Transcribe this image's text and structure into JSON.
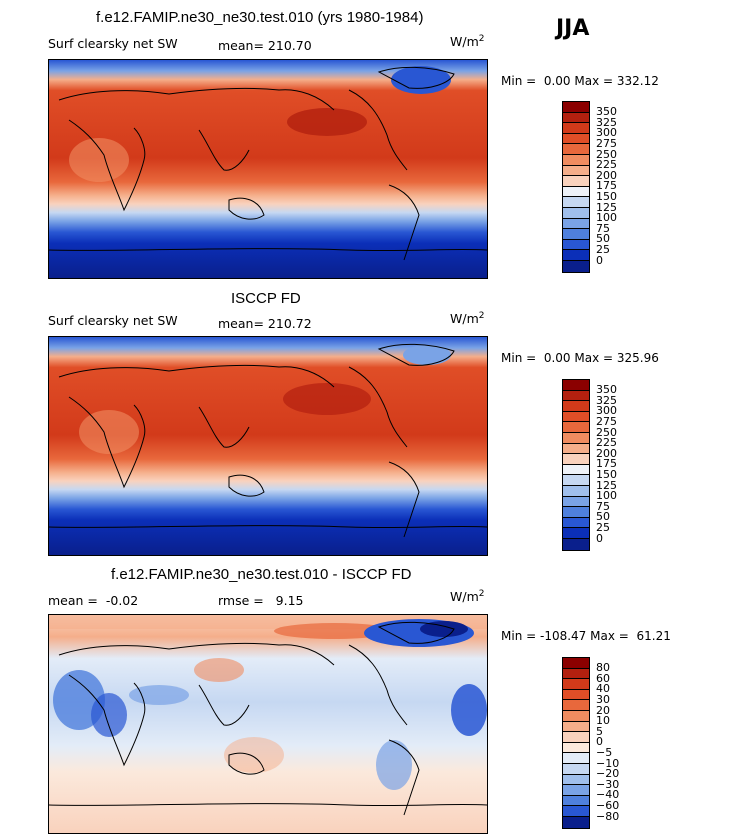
{
  "season": "JJA",
  "panels": [
    {
      "title": "f.e12.FAMIP.ne30_ne30.test.010 (yrs 1980-1984)",
      "variable": "Surf clearsky net SW",
      "mean_label": "mean=",
      "mean_value": "210.70",
      "units": "W/m",
      "units_sup": "2",
      "min_label": "Min =",
      "min_value": "0.00",
      "max_label": "Max =",
      "max_value": "332.12",
      "ticks": [
        "350",
        "325",
        "300",
        "275",
        "250",
        "225",
        "200",
        "175",
        "150",
        "125",
        "100",
        "75",
        "50",
        "25",
        "0"
      ],
      "colors": [
        "#8b0000",
        "#b3200f",
        "#d23a1a",
        "#e04e27",
        "#e8683c",
        "#f08c60",
        "#f5ae8a",
        "#f9d2bd",
        "#eef2f8",
        "#c6d8f2",
        "#a0bfec",
        "#7aa3e6",
        "#4f80dd",
        "#2957d3",
        "#0b2fb8",
        "#0a1f8c"
      ]
    },
    {
      "title": "ISCCP FD",
      "variable": "Surf clearsky net SW",
      "mean_label": "mean=",
      "mean_value": "210.72",
      "units": "W/m",
      "units_sup": "2",
      "min_label": "Min =",
      "min_value": "0.00",
      "max_label": "Max =",
      "max_value": "325.96",
      "ticks": [
        "350",
        "325",
        "300",
        "275",
        "250",
        "225",
        "200",
        "175",
        "150",
        "125",
        "100",
        "75",
        "50",
        "25",
        "0"
      ],
      "colors": [
        "#8b0000",
        "#b3200f",
        "#d23a1a",
        "#e04e27",
        "#e8683c",
        "#f08c60",
        "#f5ae8a",
        "#f9d2bd",
        "#eef2f8",
        "#c6d8f2",
        "#a0bfec",
        "#7aa3e6",
        "#4f80dd",
        "#2957d3",
        "#0b2fb8",
        "#0a1f8c"
      ]
    },
    {
      "title": "f.e12.FAMIP.ne30_ne30.test.010 - ISCCP FD",
      "mean_label": "mean =",
      "mean_value": "-0.02",
      "rmse_label": "rmse =",
      "rmse_value": "9.15",
      "units": "W/m",
      "units_sup": "2",
      "min_label": "Min =",
      "min_value": "-108.47",
      "max_label": "Max =",
      "max_value": "61.21",
      "ticks": [
        "80",
        "60",
        "40",
        "30",
        "20",
        "10",
        "5",
        "0",
        "-5",
        "-10",
        "-20",
        "-30",
        "-40",
        "-60",
        "-80"
      ],
      "colors": [
        "#8b0000",
        "#b3200f",
        "#d23a1a",
        "#e04e27",
        "#e8683c",
        "#f08c60",
        "#f5ae8a",
        "#f9d2bd",
        "#fbe9dc",
        "#e3ecf8",
        "#c6d8f2",
        "#a0bfec",
        "#7aa3e6",
        "#4f80dd",
        "#2957d3",
        "#0a1f8c"
      ]
    }
  ]
}
